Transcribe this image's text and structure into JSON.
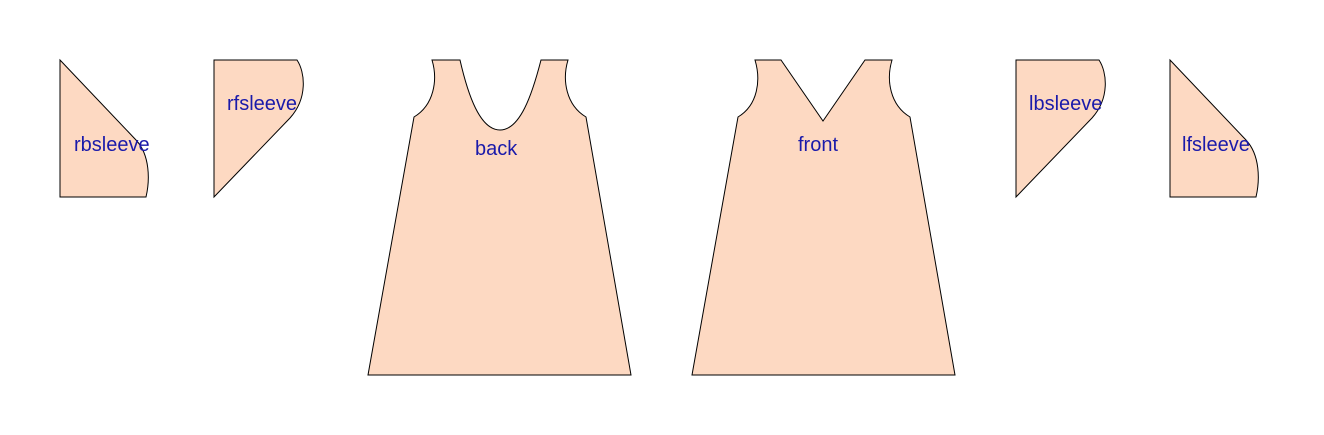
{
  "colors": {
    "piece_fill": "#fdd9c2",
    "outline": "#000000",
    "label": "#1a1aaa",
    "background": "#ffffff"
  },
  "pieces": {
    "rbsleeve": {
      "label": "rbsleeve"
    },
    "rfsleeve": {
      "label": "rfsleeve"
    },
    "back": {
      "label": "back"
    },
    "front": {
      "label": "front"
    },
    "lbsleeve": {
      "label": "lbsleeve"
    },
    "lfsleeve": {
      "label": "lfsleeve"
    }
  }
}
